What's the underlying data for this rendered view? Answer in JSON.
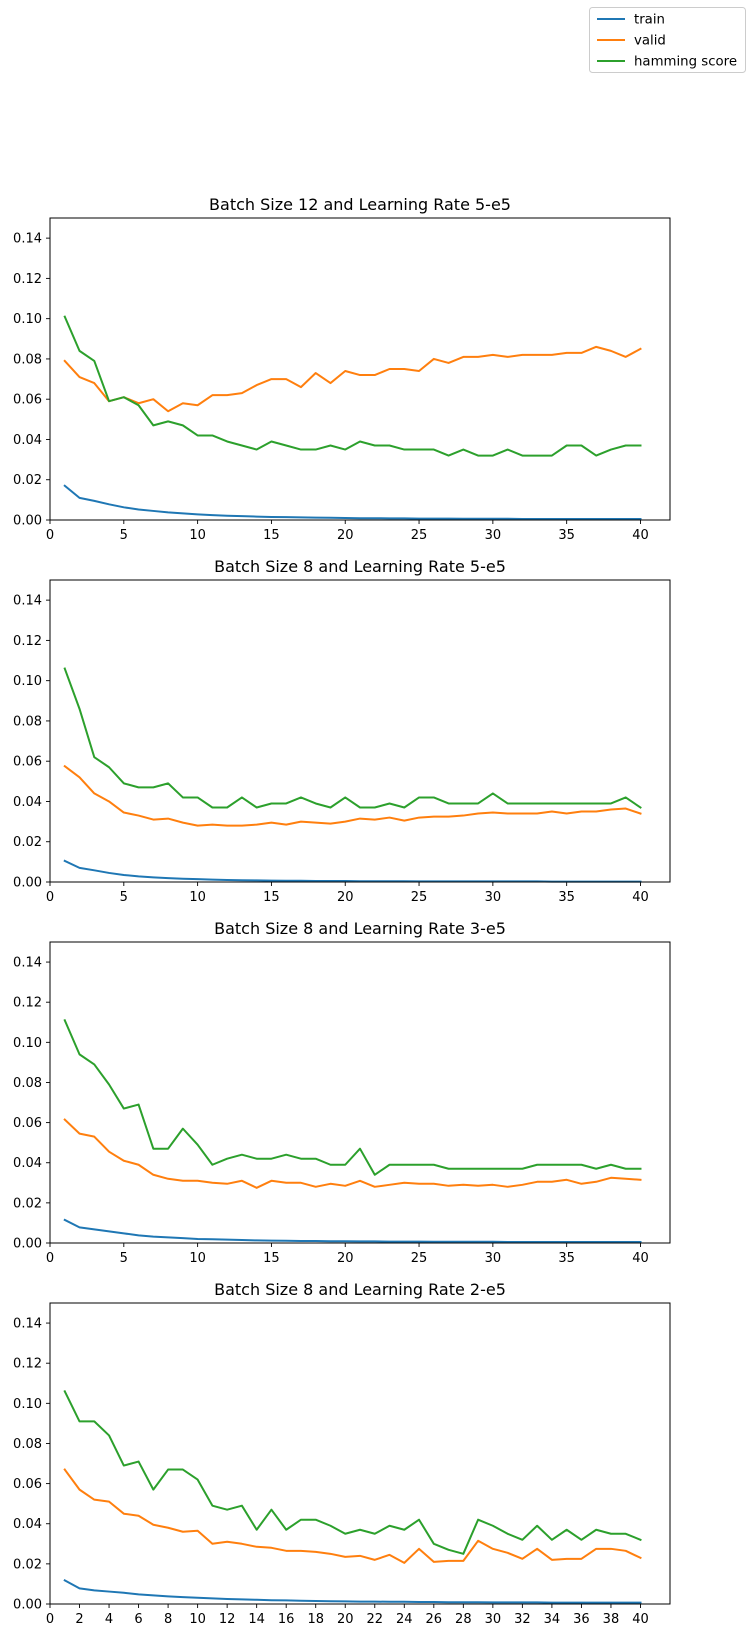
{
  "legend": {
    "placement": "top-right",
    "entries": [
      {
        "label": "train",
        "color": "#1f77b4"
      },
      {
        "label": "valid",
        "color": "#ff7f0e"
      },
      {
        "label": "hamming score",
        "color": "#2ca02c"
      }
    ]
  },
  "chart_data": [
    {
      "type": "line",
      "title": "Batch Size 12 and Learning Rate 5-e5",
      "xlabel": "",
      "ylabel": "",
      "xlim": [
        0,
        42
      ],
      "ylim": [
        0,
        0.15
      ],
      "xticks": [
        0,
        5,
        10,
        15,
        20,
        25,
        30,
        35,
        40
      ],
      "yticks": [
        "0.00",
        "0.02",
        "0.04",
        "0.06",
        "0.08",
        "0.10",
        "0.12",
        "0.14"
      ],
      "grid": false,
      "x": [
        1,
        2,
        3,
        4,
        5,
        6,
        7,
        8,
        9,
        10,
        11,
        12,
        13,
        14,
        15,
        16,
        17,
        18,
        19,
        20,
        21,
        22,
        23,
        24,
        25,
        26,
        27,
        28,
        29,
        30,
        31,
        32,
        33,
        34,
        35,
        36,
        37,
        38,
        39,
        40
      ],
      "series": [
        {
          "name": "train",
          "color": "#1f77b4",
          "values": [
            0.017,
            0.011,
            0.0095,
            0.0078,
            0.0063,
            0.0052,
            0.0045,
            0.0038,
            0.0033,
            0.0028,
            0.0024,
            0.0021,
            0.0019,
            0.0017,
            0.0015,
            0.0014,
            0.0013,
            0.0012,
            0.0011,
            0.001,
            0.0009,
            0.0009,
            0.0008,
            0.0008,
            0.0007,
            0.0007,
            0.0007,
            0.0006,
            0.0006,
            0.0006,
            0.0006,
            0.0005,
            0.0005,
            0.0005,
            0.0005,
            0.0005,
            0.0005,
            0.0005,
            0.0005,
            0.0005
          ]
        },
        {
          "name": "valid",
          "color": "#ff7f0e",
          "values": [
            0.079,
            0.071,
            0.068,
            0.059,
            0.061,
            0.058,
            0.06,
            0.054,
            0.058,
            0.057,
            0.062,
            0.062,
            0.063,
            0.067,
            0.07,
            0.07,
            0.066,
            0.073,
            0.068,
            0.074,
            0.072,
            0.072,
            0.075,
            0.075,
            0.074,
            0.08,
            0.078,
            0.081,
            0.081,
            0.082,
            0.081,
            0.082,
            0.082,
            0.082,
            0.083,
            0.083,
            0.086,
            0.084,
            0.081,
            0.085
          ]
        },
        {
          "name": "hamming score",
          "color": "#2ca02c",
          "values": [
            0.101,
            0.084,
            0.079,
            0.059,
            0.061,
            0.057,
            0.047,
            0.049,
            0.047,
            0.042,
            0.042,
            0.039,
            0.037,
            0.035,
            0.039,
            0.037,
            0.035,
            0.035,
            0.037,
            0.035,
            0.039,
            0.037,
            0.037,
            0.035,
            0.035,
            0.035,
            0.032,
            0.035,
            0.032,
            0.032,
            0.035,
            0.032,
            0.032,
            0.032,
            0.037,
            0.037,
            0.032,
            0.035,
            0.037,
            0.037
          ]
        }
      ]
    },
    {
      "type": "line",
      "title": "Batch Size 8 and Learning Rate 5-e5",
      "xlabel": "",
      "ylabel": "",
      "xlim": [
        0,
        42
      ],
      "ylim": [
        0,
        0.15
      ],
      "xticks": [
        0,
        5,
        10,
        15,
        20,
        25,
        30,
        35,
        40
      ],
      "yticks": [
        "0.00",
        "0.02",
        "0.04",
        "0.06",
        "0.08",
        "0.10",
        "0.12",
        "0.14"
      ],
      "grid": false,
      "x": [
        1,
        2,
        3,
        4,
        5,
        6,
        7,
        8,
        9,
        10,
        11,
        12,
        13,
        14,
        15,
        16,
        17,
        18,
        19,
        20,
        21,
        22,
        23,
        24,
        25,
        26,
        27,
        28,
        29,
        30,
        31,
        32,
        33,
        34,
        35,
        36,
        37,
        38,
        39,
        40
      ],
      "series": [
        {
          "name": "train",
          "color": "#1f77b4",
          "values": [
            0.0105,
            0.007,
            0.0058,
            0.0045,
            0.0035,
            0.0028,
            0.0023,
            0.0019,
            0.0016,
            0.0014,
            0.0012,
            0.001,
            0.0009,
            0.0008,
            0.0007,
            0.0006,
            0.0006,
            0.0005,
            0.0005,
            0.0005,
            0.0004,
            0.0004,
            0.0004,
            0.0004,
            0.0003,
            0.0003,
            0.0003,
            0.0003,
            0.0003,
            0.0003,
            0.0003,
            0.0003,
            0.0003,
            0.0002,
            0.0002,
            0.0002,
            0.0002,
            0.0002,
            0.0002,
            0.0002
          ]
        },
        {
          "name": "valid",
          "color": "#ff7f0e",
          "values": [
            0.0575,
            0.052,
            0.044,
            0.04,
            0.0345,
            0.033,
            0.031,
            0.0315,
            0.0295,
            0.028,
            0.0285,
            0.028,
            0.028,
            0.0285,
            0.0295,
            0.0285,
            0.03,
            0.0295,
            0.029,
            0.03,
            0.0315,
            0.031,
            0.032,
            0.0305,
            0.032,
            0.0325,
            0.0325,
            0.033,
            0.034,
            0.0345,
            0.034,
            0.034,
            0.034,
            0.035,
            0.034,
            0.035,
            0.035,
            0.036,
            0.0365,
            0.034
          ]
        },
        {
          "name": "hamming score",
          "color": "#2ca02c",
          "values": [
            0.106,
            0.086,
            0.062,
            0.057,
            0.049,
            0.047,
            0.047,
            0.049,
            0.042,
            0.042,
            0.037,
            0.037,
            0.042,
            0.037,
            0.039,
            0.039,
            0.042,
            0.039,
            0.037,
            0.042,
            0.037,
            0.037,
            0.039,
            0.037,
            0.042,
            0.042,
            0.039,
            0.039,
            0.039,
            0.044,
            0.039,
            0.039,
            0.039,
            0.039,
            0.039,
            0.039,
            0.039,
            0.039,
            0.042,
            0.037
          ]
        }
      ]
    },
    {
      "type": "line",
      "title": "Batch Size 8 and Learning Rate 3-e5",
      "xlabel": "",
      "ylabel": "",
      "xlim": [
        0,
        42
      ],
      "ylim": [
        0,
        0.15
      ],
      "xticks": [
        0,
        5,
        10,
        15,
        20,
        25,
        30,
        35,
        40
      ],
      "yticks": [
        "0.00",
        "0.02",
        "0.04",
        "0.06",
        "0.08",
        "0.10",
        "0.12",
        "0.14"
      ],
      "grid": false,
      "x": [
        1,
        2,
        3,
        4,
        5,
        6,
        7,
        8,
        9,
        10,
        11,
        12,
        13,
        14,
        15,
        16,
        17,
        18,
        19,
        20,
        21,
        22,
        23,
        24,
        25,
        26,
        27,
        28,
        29,
        30,
        31,
        32,
        33,
        34,
        35,
        36,
        37,
        38,
        39,
        40
      ],
      "series": [
        {
          "name": "train",
          "color": "#1f77b4",
          "values": [
            0.0115,
            0.0078,
            0.0068,
            0.0058,
            0.0048,
            0.0038,
            0.0032,
            0.0028,
            0.0024,
            0.002,
            0.0019,
            0.0017,
            0.0015,
            0.0013,
            0.0012,
            0.0011,
            0.001,
            0.001,
            0.0009,
            0.0009,
            0.0008,
            0.0008,
            0.0007,
            0.0007,
            0.0007,
            0.0006,
            0.0006,
            0.0006,
            0.0006,
            0.0006,
            0.0005,
            0.0005,
            0.0005,
            0.0005,
            0.0005,
            0.0005,
            0.0005,
            0.0005,
            0.0005,
            0.0005
          ]
        },
        {
          "name": "valid",
          "color": "#ff7f0e",
          "values": [
            0.0615,
            0.0545,
            0.053,
            0.0455,
            0.041,
            0.039,
            0.034,
            0.032,
            0.031,
            0.031,
            0.03,
            0.0295,
            0.031,
            0.0275,
            0.031,
            0.03,
            0.03,
            0.028,
            0.0295,
            0.0285,
            0.031,
            0.028,
            0.029,
            0.03,
            0.0295,
            0.0295,
            0.0285,
            0.029,
            0.0285,
            0.029,
            0.028,
            0.029,
            0.0305,
            0.0305,
            0.0315,
            0.0295,
            0.0305,
            0.0325,
            0.032,
            0.0315
          ]
        },
        {
          "name": "hamming score",
          "color": "#2ca02c",
          "values": [
            0.111,
            0.094,
            0.089,
            0.079,
            0.067,
            0.069,
            0.047,
            0.047,
            0.057,
            0.049,
            0.039,
            0.042,
            0.044,
            0.042,
            0.042,
            0.044,
            0.042,
            0.042,
            0.039,
            0.039,
            0.047,
            0.034,
            0.039,
            0.039,
            0.039,
            0.039,
            0.037,
            0.037,
            0.037,
            0.037,
            0.037,
            0.037,
            0.039,
            0.039,
            0.039,
            0.039,
            0.037,
            0.039,
            0.037,
            0.037
          ]
        }
      ]
    },
    {
      "type": "line",
      "title": "Batch Size 8 and Learning Rate 2-e5",
      "xlabel": "",
      "ylabel": "",
      "xlim": [
        0,
        42
      ],
      "ylim": [
        0,
        0.15
      ],
      "xticks": [
        0,
        2,
        4,
        6,
        8,
        10,
        12,
        14,
        16,
        18,
        20,
        22,
        24,
        26,
        28,
        30,
        32,
        34,
        36,
        38,
        40
      ],
      "yticks": [
        "0.00",
        "0.02",
        "0.04",
        "0.06",
        "0.08",
        "0.10",
        "0.12",
        "0.14"
      ],
      "grid": false,
      "x": [
        1,
        2,
        3,
        4,
        5,
        6,
        7,
        8,
        9,
        10,
        11,
        12,
        13,
        14,
        15,
        16,
        17,
        18,
        19,
        20,
        21,
        22,
        23,
        24,
        25,
        26,
        27,
        28,
        29,
        30,
        31,
        32,
        33,
        34,
        35,
        36,
        37,
        38,
        39,
        40
      ],
      "series": [
        {
          "name": "train",
          "color": "#1f77b4",
          "values": [
            0.0118,
            0.0078,
            0.0068,
            0.0062,
            0.0056,
            0.0048,
            0.0043,
            0.0038,
            0.0034,
            0.0031,
            0.0028,
            0.0025,
            0.0023,
            0.0021,
            0.0019,
            0.0018,
            0.0016,
            0.0015,
            0.0014,
            0.0013,
            0.0012,
            0.0012,
            0.0011,
            0.0011,
            0.001,
            0.001,
            0.0009,
            0.0009,
            0.0009,
            0.0008,
            0.0008,
            0.0008,
            0.0008,
            0.0007,
            0.0007,
            0.0007,
            0.0007,
            0.0007,
            0.0007,
            0.0007
          ]
        },
        {
          "name": "valid",
          "color": "#ff7f0e",
          "values": [
            0.067,
            0.057,
            0.052,
            0.051,
            0.045,
            0.044,
            0.0395,
            0.038,
            0.036,
            0.0365,
            0.03,
            0.031,
            0.03,
            0.0285,
            0.028,
            0.0265,
            0.0265,
            0.026,
            0.025,
            0.0235,
            0.024,
            0.022,
            0.0245,
            0.0205,
            0.0275,
            0.021,
            0.0215,
            0.0215,
            0.0315,
            0.0275,
            0.0255,
            0.0225,
            0.0275,
            0.022,
            0.0225,
            0.0225,
            0.0275,
            0.0275,
            0.0265,
            0.023
          ]
        },
        {
          "name": "hamming score",
          "color": "#2ca02c",
          "values": [
            0.106,
            0.091,
            0.091,
            0.084,
            0.069,
            0.071,
            0.057,
            0.067,
            0.067,
            0.062,
            0.049,
            0.047,
            0.049,
            0.037,
            0.047,
            0.037,
            0.042,
            0.042,
            0.039,
            0.035,
            0.037,
            0.035,
            0.039,
            0.037,
            0.042,
            0.03,
            0.027,
            0.025,
            0.042,
            0.039,
            0.035,
            0.032,
            0.039,
            0.032,
            0.037,
            0.032,
            0.037,
            0.035,
            0.035,
            0.032
          ]
        }
      ]
    }
  ]
}
